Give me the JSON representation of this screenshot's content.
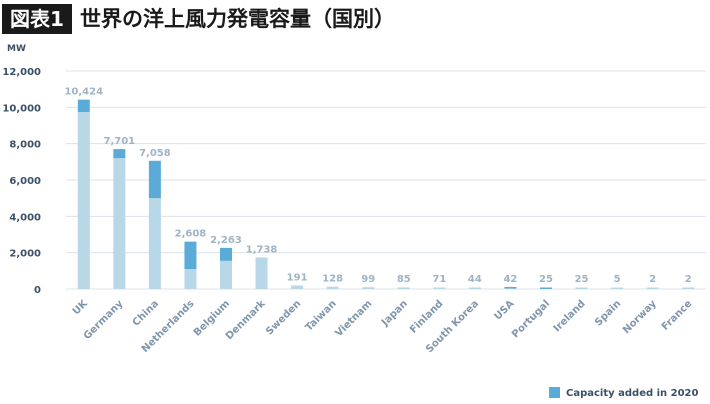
{
  "header": {
    "badge": "図表1",
    "title": "世界の洋上風力発電容量（国別）"
  },
  "colors": {
    "base": "#b8d8e8",
    "added": "#5aabd8",
    "label": "#7f96ad",
    "value_label": "#9fb4c6",
    "grid": "#dbe3ea",
    "axis_text": "#3b5066"
  },
  "chart_data": {
    "type": "bar",
    "stacked": true,
    "unit_label": "MW",
    "ylim": [
      0,
      12000
    ],
    "yticks": [
      0,
      2000,
      4000,
      6000,
      8000,
      10000,
      12000
    ],
    "ytick_labels": [
      "0",
      "2,000",
      "4,000",
      "6,000",
      "8,000",
      "10,000",
      "12,000"
    ],
    "grid": true,
    "legend_position": "bottom-right",
    "categories": [
      "UK",
      "Germany",
      "China",
      "Netherlands",
      "Belgium",
      "Denmark",
      "Sweden",
      "Taiwan",
      "Vietnam",
      "Japan",
      "Finland",
      "South Korea",
      "USA",
      "Portugal",
      "Ireland",
      "Spain",
      "Norway",
      "France"
    ],
    "series": [
      {
        "values": [
          9740,
          7200,
          5000,
          1100,
          1550,
          1738,
          191,
          128,
          99,
          85,
          71,
          44,
          30,
          0,
          25,
          5,
          2,
          2
        ]
      },
      {
        "name": "Capacity added in 2020",
        "values": [
          684,
          501,
          2058,
          1508,
          713,
          0,
          0,
          0,
          0,
          0,
          0,
          0,
          12,
          25,
          0,
          0,
          0,
          0
        ]
      }
    ],
    "totals": [
      10424,
      7701,
      7058,
      2608,
      2263,
      1738,
      191,
      128,
      99,
      85,
      71,
      44,
      42,
      25,
      25,
      5,
      2,
      2
    ],
    "total_labels": [
      "10,424",
      "7,701",
      "7,058",
      "2,608",
      "2,263",
      "1,738",
      "191",
      "128",
      "99",
      "85",
      "71",
      "44",
      "42",
      "25",
      "25",
      "5",
      "2",
      "2"
    ]
  }
}
